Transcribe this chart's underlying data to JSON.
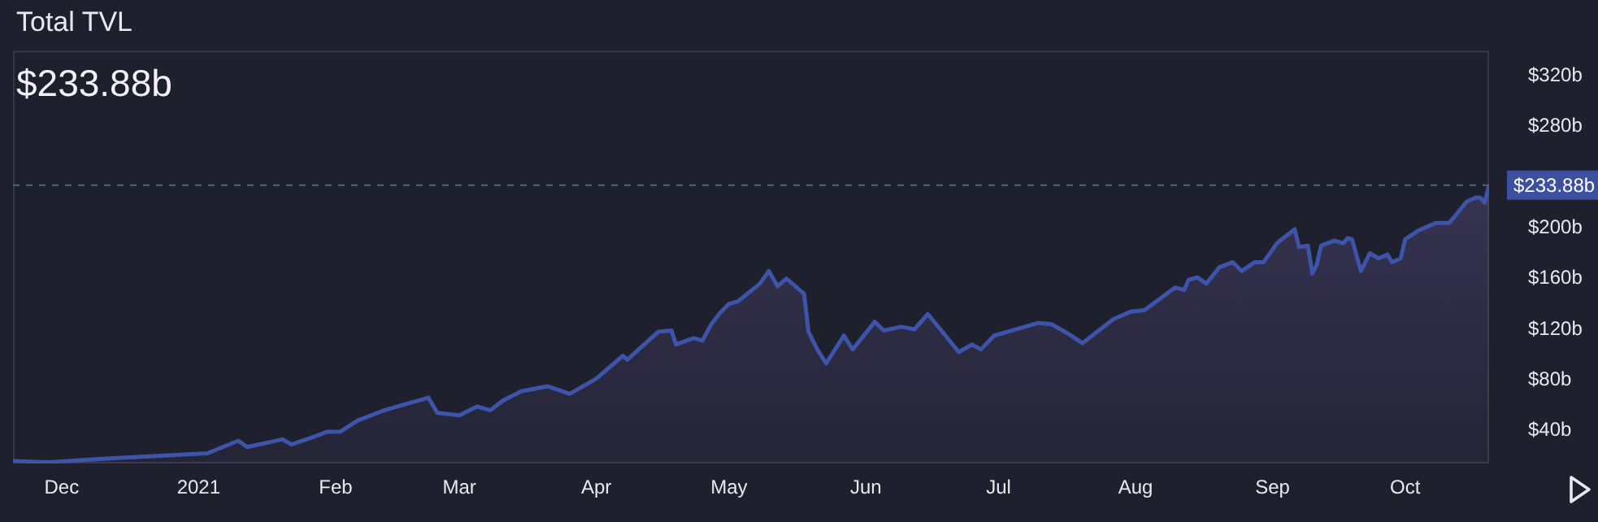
{
  "chart_data": {
    "type": "area",
    "title": "Total TVL",
    "subtitle": "$233.88b",
    "x": [
      "2020-11-20",
      "2020-11-28",
      "2020-12-12",
      "2021-01-03",
      "2021-01-10",
      "2021-01-12",
      "2021-01-20",
      "2021-01-22",
      "2021-01-27",
      "2021-01-30",
      "2021-02-02",
      "2021-02-06",
      "2021-02-12",
      "2021-02-22",
      "2021-02-24",
      "2021-03-01",
      "2021-03-05",
      "2021-03-08",
      "2021-03-11",
      "2021-03-15",
      "2021-03-21",
      "2021-03-26",
      "2021-04-01",
      "2021-04-07",
      "2021-04-08",
      "2021-04-15",
      "2021-04-18",
      "2021-04-19",
      "2021-04-23",
      "2021-04-25",
      "2021-04-27",
      "2021-04-29",
      "2021-05-01",
      "2021-05-03",
      "2021-05-08",
      "2021-05-10",
      "2021-05-12",
      "2021-05-14",
      "2021-05-18",
      "2021-05-19",
      "2021-05-21",
      "2021-05-23",
      "2021-05-27",
      "2021-05-29",
      "2021-06-03",
      "2021-06-05",
      "2021-06-09",
      "2021-06-12",
      "2021-06-15",
      "2021-06-19",
      "2021-06-22",
      "2021-06-25",
      "2021-06-27",
      "2021-06-30",
      "2021-07-07",
      "2021-07-10",
      "2021-07-13",
      "2021-07-17",
      "2021-07-20",
      "2021-07-27",
      "2021-07-31",
      "2021-08-03",
      "2021-08-10",
      "2021-08-12",
      "2021-08-13",
      "2021-08-15",
      "2021-08-17",
      "2021-08-20",
      "2021-08-23",
      "2021-08-25",
      "2021-08-28",
      "2021-08-30",
      "2021-09-02",
      "2021-09-06",
      "2021-09-07",
      "2021-09-09",
      "2021-09-10",
      "2021-09-11",
      "2021-09-12",
      "2021-09-15",
      "2021-09-17",
      "2021-09-18",
      "2021-09-19",
      "2021-09-21",
      "2021-09-23",
      "2021-09-25",
      "2021-09-27",
      "2021-09-28",
      "2021-09-30",
      "2021-10-01",
      "2021-10-04",
      "2021-10-06",
      "2021-10-08",
      "2021-10-11",
      "2021-10-15",
      "2021-10-17",
      "2021-10-18",
      "2021-10-19",
      "2021-10-20"
    ],
    "series": [
      {
        "color": "#3d54a8",
        "values": [
          16,
          15,
          18,
          22,
          32,
          27,
          33,
          29,
          35,
          39,
          39,
          48,
          56,
          66,
          54,
          52,
          59,
          56,
          64,
          71,
          75,
          69,
          81,
          99,
          96,
          118,
          119,
          108,
          113,
          111,
          124,
          133,
          140,
          142,
          156,
          166,
          154,
          160,
          148,
          118,
          104,
          93,
          115,
          104,
          126,
          119,
          122,
          120,
          132,
          115,
          102,
          108,
          104,
          115,
          122,
          125,
          124,
          116,
          109,
          128,
          134,
          135,
          153,
          151,
          159,
          161,
          156,
          169,
          173,
          166,
          173,
          173,
          188,
          199,
          185,
          186,
          164,
          171,
          186,
          190,
          188,
          192,
          191,
          166,
          180,
          176,
          179,
          173,
          176,
          191,
          198,
          201,
          204,
          204,
          221,
          224,
          224,
          220,
          233.88
        ]
      }
    ],
    "xlim": [
      "2020-11-20",
      "2021-10-20"
    ],
    "xticks": [
      {
        "value": "2020-12-01",
        "label": "Dec"
      },
      {
        "value": "2021-01-01",
        "label": "2021"
      },
      {
        "value": "2021-02-01",
        "label": "Feb"
      },
      {
        "value": "2021-03-01",
        "label": "Mar"
      },
      {
        "value": "2021-04-01",
        "label": "Apr"
      },
      {
        "value": "2021-05-01",
        "label": "May"
      },
      {
        "value": "2021-06-01",
        "label": "Jun"
      },
      {
        "value": "2021-07-01",
        "label": "Jul"
      },
      {
        "value": "2021-08-01",
        "label": "Aug"
      },
      {
        "value": "2021-09-01",
        "label": "Sep"
      },
      {
        "value": "2021-10-01",
        "label": "Oct"
      }
    ],
    "ylim": [
      14,
      340
    ],
    "yticks": [
      {
        "value": 40,
        "label": "$40b"
      },
      {
        "value": 80,
        "label": "$80b"
      },
      {
        "value": 120,
        "label": "$120b"
      },
      {
        "value": 160,
        "label": "$160b"
      },
      {
        "value": 200,
        "label": "$200b"
      },
      {
        "value": 280,
        "label": "$280b"
      },
      {
        "value": 320,
        "label": "$320b"
      }
    ],
    "ref_lines": [
      {
        "axis": "y",
        "value": 233.88,
        "label": "$233.88b",
        "color": "#5a6080",
        "line_style": "dashed"
      }
    ],
    "grid": false,
    "legend": false,
    "marker": "none",
    "line_style": "solid"
  }
}
